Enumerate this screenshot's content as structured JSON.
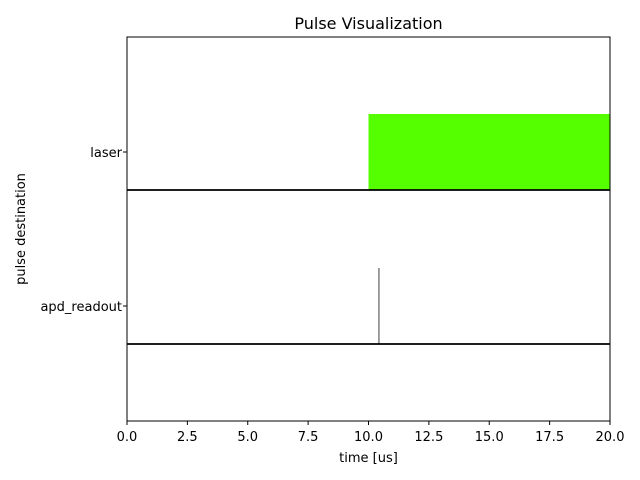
{
  "chart_data": {
    "type": "pulse",
    "title": "Pulse Visualization",
    "xlabel": "time [us]",
    "ylabel": "pulse destination",
    "xlim": [
      0,
      20
    ],
    "xticks": [
      "0.0",
      "2.5",
      "5.0",
      "7.5",
      "10.0",
      "12.5",
      "15.0",
      "17.5",
      "20.0"
    ],
    "grid": false,
    "series": [
      {
        "name": "laser",
        "color": "#55ff00",
        "pulses": [
          {
            "start": 10.0,
            "end": 20.0
          }
        ]
      },
      {
        "name": "apd_readout",
        "color": "#7f7f7f",
        "pulses": [
          {
            "start": 10.4,
            "end": 10.45
          }
        ]
      }
    ]
  }
}
